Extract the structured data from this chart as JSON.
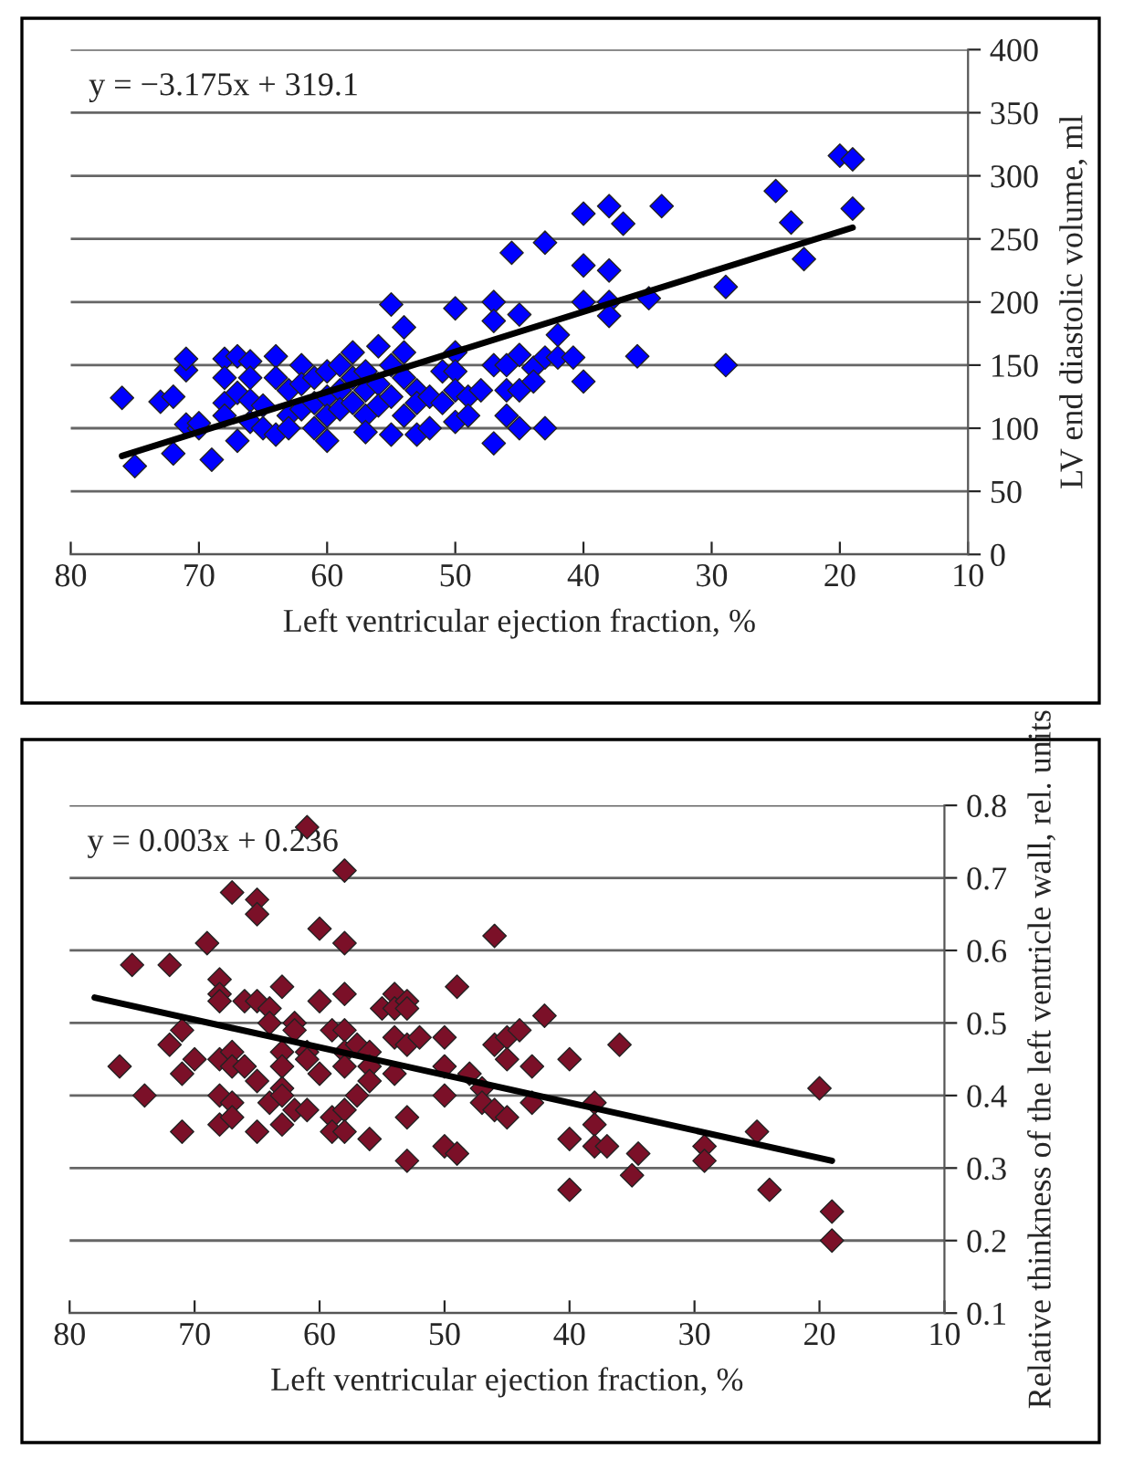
{
  "chart_data": [
    {
      "type": "scatter",
      "xlabel": "Left ventricular ejection fraction, %",
      "ylabel": "LV end diastolic volume, ml",
      "xlim": [
        80,
        10
      ],
      "xticks": [
        80,
        70,
        60,
        50,
        40,
        30,
        20,
        10
      ],
      "ylim": [
        0,
        400
      ],
      "yticks": [
        0,
        50,
        100,
        150,
        200,
        250,
        300,
        350,
        400
      ],
      "grid": "y",
      "marker": "diamond",
      "annotations": [
        "y = −3.175x + 319.1"
      ],
      "series": [
        {
          "type": "scatter",
          "color": "#0000ff",
          "x": [
            76,
            75,
            73,
            72,
            71,
            71,
            71,
            72,
            70,
            70,
            69,
            68,
            68,
            68,
            68,
            67,
            67,
            67,
            66,
            66,
            66,
            66,
            65,
            65,
            64,
            64,
            64,
            63,
            63,
            63,
            62,
            62,
            62,
            61,
            61,
            61,
            60,
            60,
            60,
            60,
            59,
            59,
            59,
            58,
            58,
            58,
            57,
            57,
            57,
            57,
            56,
            56,
            56,
            55,
            55,
            55,
            55,
            54,
            54,
            54,
            54,
            53,
            53,
            53,
            52,
            52,
            51,
            51,
            50,
            50,
            50,
            50,
            50,
            49,
            49,
            48,
            47,
            47,
            47,
            47,
            46,
            46,
            46,
            45.6,
            45,
            45,
            45,
            45,
            43.9,
            43.9,
            43,
            43,
            43,
            42,
            42,
            40.8,
            40,
            40,
            40,
            40,
            38,
            38,
            38,
            38,
            36.9,
            35.8,
            34.9,
            33.9,
            28.9,
            28.9,
            25,
            23.8,
            22.8,
            20,
            19,
            19
          ],
          "values": [
            124,
            70,
            121,
            80,
            103,
            146,
            155,
            125,
            100,
            104,
            75,
            155,
            140,
            120,
            110,
            157,
            128,
            90,
            153,
            140,
            122,
            105,
            118,
            100,
            95,
            157,
            140,
            130,
            110,
            100,
            150,
            135,
            115,
            100,
            140,
            120,
            145,
            125,
            110,
            90,
            150,
            130,
            115,
            160,
            140,
            120,
            145,
            130,
            110,
            97,
            165,
            135,
            118,
            198,
            150,
            125,
            95,
            180,
            160,
            140,
            110,
            95,
            130,
            120,
            125,
            100,
            145,
            120,
            195,
            160,
            145,
            130,
            105,
            125,
            110,
            130,
            200,
            185,
            150,
            88,
            150,
            130,
            110,
            239,
            190,
            158,
            130,
            100,
            148,
            137,
            247,
            156,
            100,
            174,
            156,
            156,
            270,
            229,
            200,
            137,
            276,
            225,
            200,
            189,
            262,
            157,
            203,
            276,
            212,
            150,
            288,
            263,
            234,
            316,
            313,
            274
          ]
        },
        {
          "type": "line",
          "color": "#000000",
          "marker": "none",
          "line_style": "solid",
          "x": [
            76,
            19
          ],
          "values": [
            78,
            259
          ]
        }
      ]
    },
    {
      "type": "scatter",
      "xlabel": "Left ventricular ejection fraction, %",
      "ylabel": "Relative thinkness of the left ventricle wall, rel. units",
      "xlim": [
        80,
        10
      ],
      "xticks": [
        80,
        70,
        60,
        50,
        40,
        30,
        20,
        10
      ],
      "ylim": [
        0.1,
        0.8
      ],
      "yticks": [
        0.1,
        0.2,
        0.3,
        0.4,
        0.5,
        0.6,
        0.7,
        0.8
      ],
      "grid": "y",
      "marker": "diamond",
      "annotations": [
        "y = 0.003x + 0.236"
      ],
      "series": [
        {
          "type": "scatter",
          "color": "#7b1028",
          "x": [
            76,
            75,
            74,
            72,
            72,
            71,
            71,
            71,
            70,
            69,
            68,
            68,
            68,
            68,
            68,
            68,
            67,
            67,
            67,
            67,
            67,
            66,
            66,
            65,
            65,
            65,
            65,
            65,
            64,
            64,
            64,
            63,
            63,
            63,
            63,
            63,
            63,
            62,
            62,
            62,
            61,
            61,
            61,
            61,
            60,
            60,
            60,
            59,
            59,
            59,
            58,
            58,
            58,
            58,
            58,
            58,
            58,
            58,
            57,
            57,
            56,
            56,
            56,
            56,
            55,
            54,
            54,
            54,
            54,
            53,
            53,
            53,
            53,
            53,
            52,
            50,
            50,
            50,
            50,
            49,
            49,
            48,
            47,
            47,
            46,
            46,
            46,
            45,
            45,
            45,
            44,
            43,
            43,
            42,
            40,
            40,
            40,
            38,
            38,
            38,
            37,
            36,
            35,
            34.5,
            29.2,
            29.2,
            25,
            24,
            20,
            19,
            19
          ],
          "values": [
            0.44,
            0.58,
            0.4,
            0.58,
            0.47,
            0.49,
            0.43,
            0.35,
            0.45,
            0.61,
            0.56,
            0.54,
            0.53,
            0.45,
            0.4,
            0.36,
            0.68,
            0.46,
            0.44,
            0.39,
            0.37,
            0.53,
            0.44,
            0.67,
            0.65,
            0.53,
            0.42,
            0.35,
            0.52,
            0.5,
            0.39,
            0.55,
            0.46,
            0.44,
            0.41,
            0.4,
            0.36,
            0.5,
            0.49,
            0.38,
            0.77,
            0.46,
            0.45,
            0.38,
            0.63,
            0.53,
            0.43,
            0.49,
            0.37,
            0.35,
            0.71,
            0.61,
            0.54,
            0.49,
            0.46,
            0.44,
            0.38,
            0.35,
            0.47,
            0.4,
            0.46,
            0.44,
            0.42,
            0.34,
            0.52,
            0.54,
            0.52,
            0.48,
            0.43,
            0.53,
            0.52,
            0.47,
            0.37,
            0.31,
            0.48,
            0.48,
            0.44,
            0.4,
            0.33,
            0.55,
            0.32,
            0.43,
            0.41,
            0.39,
            0.62,
            0.47,
            0.38,
            0.48,
            0.45,
            0.37,
            0.49,
            0.44,
            0.39,
            0.51,
            0.45,
            0.34,
            0.27,
            0.39,
            0.36,
            0.33,
            0.33,
            0.47,
            0.29,
            0.32,
            0.33,
            0.31,
            0.35,
            0.27,
            0.41,
            0.24,
            0.2
          ]
        },
        {
          "type": "line",
          "color": "#000000",
          "marker": "none",
          "line_style": "solid",
          "x": [
            78,
            19
          ],
          "values": [
            0.535,
            0.31
          ]
        }
      ]
    }
  ]
}
